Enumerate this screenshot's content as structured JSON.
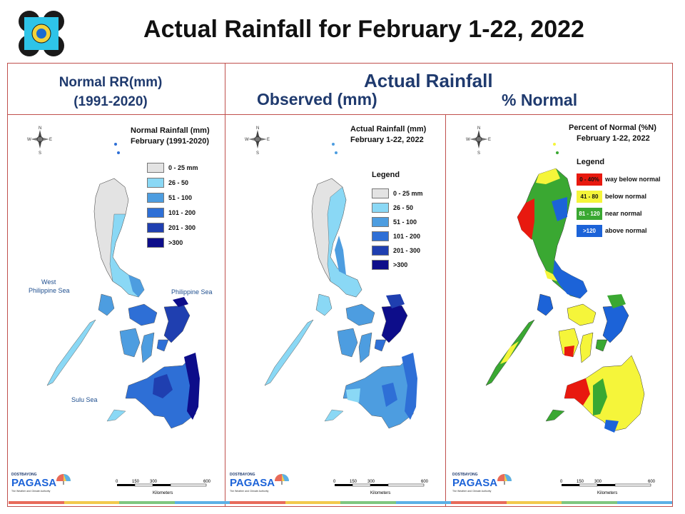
{
  "title": "Actual Rainfall for February 1-22, 2022",
  "headers": {
    "normal_line1": "Normal RR(mm)",
    "normal_line2": "(1991-2020)",
    "actual": "Actual Rainfall",
    "observed": "Observed (mm)",
    "percent_normal": "% Normal"
  },
  "maps": [
    {
      "title_line1": "Normal Rainfall (mm)",
      "title_line2": "February (1991-2020)",
      "legend_title": "",
      "legend": [
        {
          "label": "0 - 25 mm",
          "color": "#e3e3e3"
        },
        {
          "label": "26 - 50",
          "color": "#8ad8f5"
        },
        {
          "label": "51 - 100",
          "color": "#4d9de0"
        },
        {
          "label": "101 - 200",
          "color": "#2e6fd6"
        },
        {
          "label": "201 - 300",
          "color": "#1f3fb0"
        },
        {
          "label": ">300",
          "color": "#0d0d8a"
        }
      ],
      "sea_labels": [
        "West",
        "Philippine Sea",
        "Philippine Sea",
        "Sulu Sea"
      ]
    },
    {
      "title_line1": "Actual Rainfall (mm)",
      "title_line2": "February 1-22, 2022",
      "legend_title": "Legend",
      "legend": [
        {
          "label": "0 - 25 mm",
          "color": "#e3e3e3"
        },
        {
          "label": "26 - 50",
          "color": "#8ad8f5"
        },
        {
          "label": "51 - 100",
          "color": "#4d9de0"
        },
        {
          "label": "101 - 200",
          "color": "#2e6fd6"
        },
        {
          "label": "201 - 300",
          "color": "#1f3fb0"
        },
        {
          "label": ">300",
          "color": "#0d0d8a"
        }
      ]
    },
    {
      "title_line1": "Percent of Normal (%N)",
      "title_line2": "February 1-22, 2022",
      "legend_title": "Legend",
      "legend": [
        {
          "range": "0 - 40%",
          "label": "way below normal",
          "color": "#e8190f"
        },
        {
          "range": "41 - 80",
          "label": "below normal",
          "color": "#f5f53a"
        },
        {
          "range": "81 - 120",
          "label": "near normal",
          "color": "#3aa832"
        },
        {
          "range": ">120",
          "label": "above normal",
          "color": "#1c63d8"
        }
      ]
    }
  ],
  "scale": {
    "ticks": [
      "0",
      "150",
      "300",
      "600"
    ],
    "unit": "Kilometers"
  },
  "logo": {
    "dost": "DOST",
    "bayong": "BAYONG",
    "name": "PAGASA",
    "tagline": "The Weather and Climate Authority"
  },
  "compass": [
    "N",
    "S",
    "E",
    "W"
  ],
  "colors": {
    "frame": "#c0504d",
    "header_text": "#1f3a6e",
    "footer": [
      "#e86a5a",
      "#f2c94c",
      "#7fc77f",
      "#5bb0e6"
    ]
  }
}
